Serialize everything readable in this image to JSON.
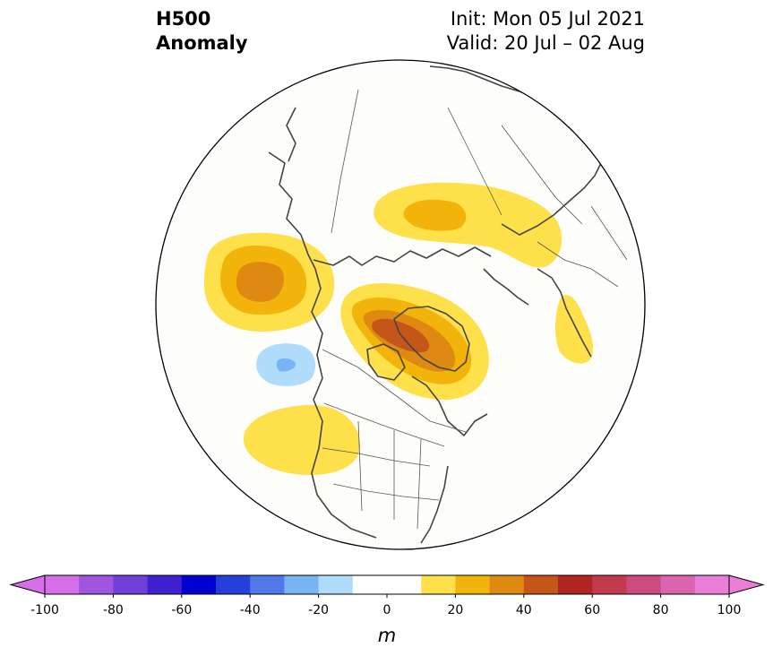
{
  "header": {
    "variable": "H500",
    "product": "Anomaly",
    "init": "Init: Mon 05 Jul 2021",
    "valid": "Valid: 20 Jul – 02 Aug"
  },
  "map": {
    "projection": "north-polar-stereographic",
    "region": "Northern Hemisphere / North America",
    "anomaly_features": [
      {
        "location": "North Pacific (Gulf of Alaska)",
        "max_level_m": 30
      },
      {
        "location": "Canadian Arctic Archipelago / Greenland",
        "max_level_m": 40
      },
      {
        "location": "Northern Russia / Siberia",
        "max_level_m": 30
      },
      {
        "location": "Western Europe",
        "max_level_m": 10
      },
      {
        "location": "US West Coast / Pacific",
        "max_level_m": 10
      },
      {
        "location": "Northeast Pacific (off British Columbia)",
        "max_level_m": -30
      }
    ]
  },
  "colorbar": {
    "unit": "m",
    "min": -100,
    "max": 100,
    "step": 10,
    "extend": "both",
    "tick_labels": [
      "-100",
      "-80",
      "-60",
      "-40",
      "-20",
      "0",
      "20",
      "40",
      "60",
      "80",
      "100"
    ],
    "colors": [
      "#d56ee8",
      "#a055de",
      "#7040d8",
      "#4020d0",
      "#0000d0",
      "#2440d8",
      "#5078e8",
      "#78b4f4",
      "#b0dcfc",
      "#ffffff",
      "#ffffff",
      "#fee04a",
      "#f2b40a",
      "#de8a12",
      "#c4561a",
      "#b02424",
      "#c23a4c",
      "#cc4c80",
      "#da64ae",
      "#e87ed8"
    ]
  }
}
